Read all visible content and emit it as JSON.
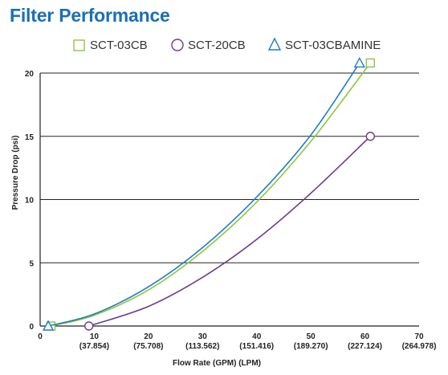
{
  "chart_data": {
    "type": "line",
    "title": "Filter Performance",
    "xlabel": "Flow Rate (GPM) (LPM)",
    "ylabel": "Pressure Drop (psi)",
    "xlim": [
      0,
      70
    ],
    "ylim": [
      0,
      20
    ],
    "x_ticks": [
      {
        "value": 0,
        "label": "0",
        "sublabel": ""
      },
      {
        "value": 10,
        "label": "10",
        "sublabel": "(37.854)"
      },
      {
        "value": 20,
        "label": "20",
        "sublabel": "(75.708)"
      },
      {
        "value": 30,
        "label": "30",
        "sublabel": "(113.562)"
      },
      {
        "value": 40,
        "label": "40",
        "sublabel": "(151.416)"
      },
      {
        "value": 50,
        "label": "50",
        "sublabel": "(189.270)"
      },
      {
        "value": 60,
        "label": "60",
        "sublabel": "(227.124)"
      },
      {
        "value": 70,
        "label": "70",
        "sublabel": "(264.978)"
      }
    ],
    "y_ticks": [
      0,
      5,
      10,
      15,
      20
    ],
    "grid": "horizontal",
    "legend_position": "top",
    "series": [
      {
        "name": "SCT-03CB",
        "color": "#8dc63f",
        "marker": "square",
        "x": [
          2,
          10,
          20,
          30,
          40,
          50,
          61
        ],
        "y": [
          0,
          0.85,
          2.85,
          5.9,
          9.8,
          14.6,
          20.8
        ],
        "markers_at": [
          0,
          6
        ]
      },
      {
        "name": "SCT-20CB",
        "color": "#6a3d8f",
        "marker": "circle",
        "x": [
          9,
          20,
          30,
          40,
          50,
          61
        ],
        "y": [
          0,
          1.55,
          3.85,
          6.85,
          10.5,
          15
        ]
      },
      {
        "name": "SCT-03CBAMINE",
        "color": "#1f7dc4",
        "marker": "triangle",
        "x": [
          1.5,
          10,
          20,
          30,
          40,
          50,
          59
        ],
        "y": [
          0,
          0.95,
          3.1,
          6.2,
          10.2,
          15.1,
          20.8
        ],
        "markers_at": [
          0,
          6
        ]
      }
    ]
  }
}
